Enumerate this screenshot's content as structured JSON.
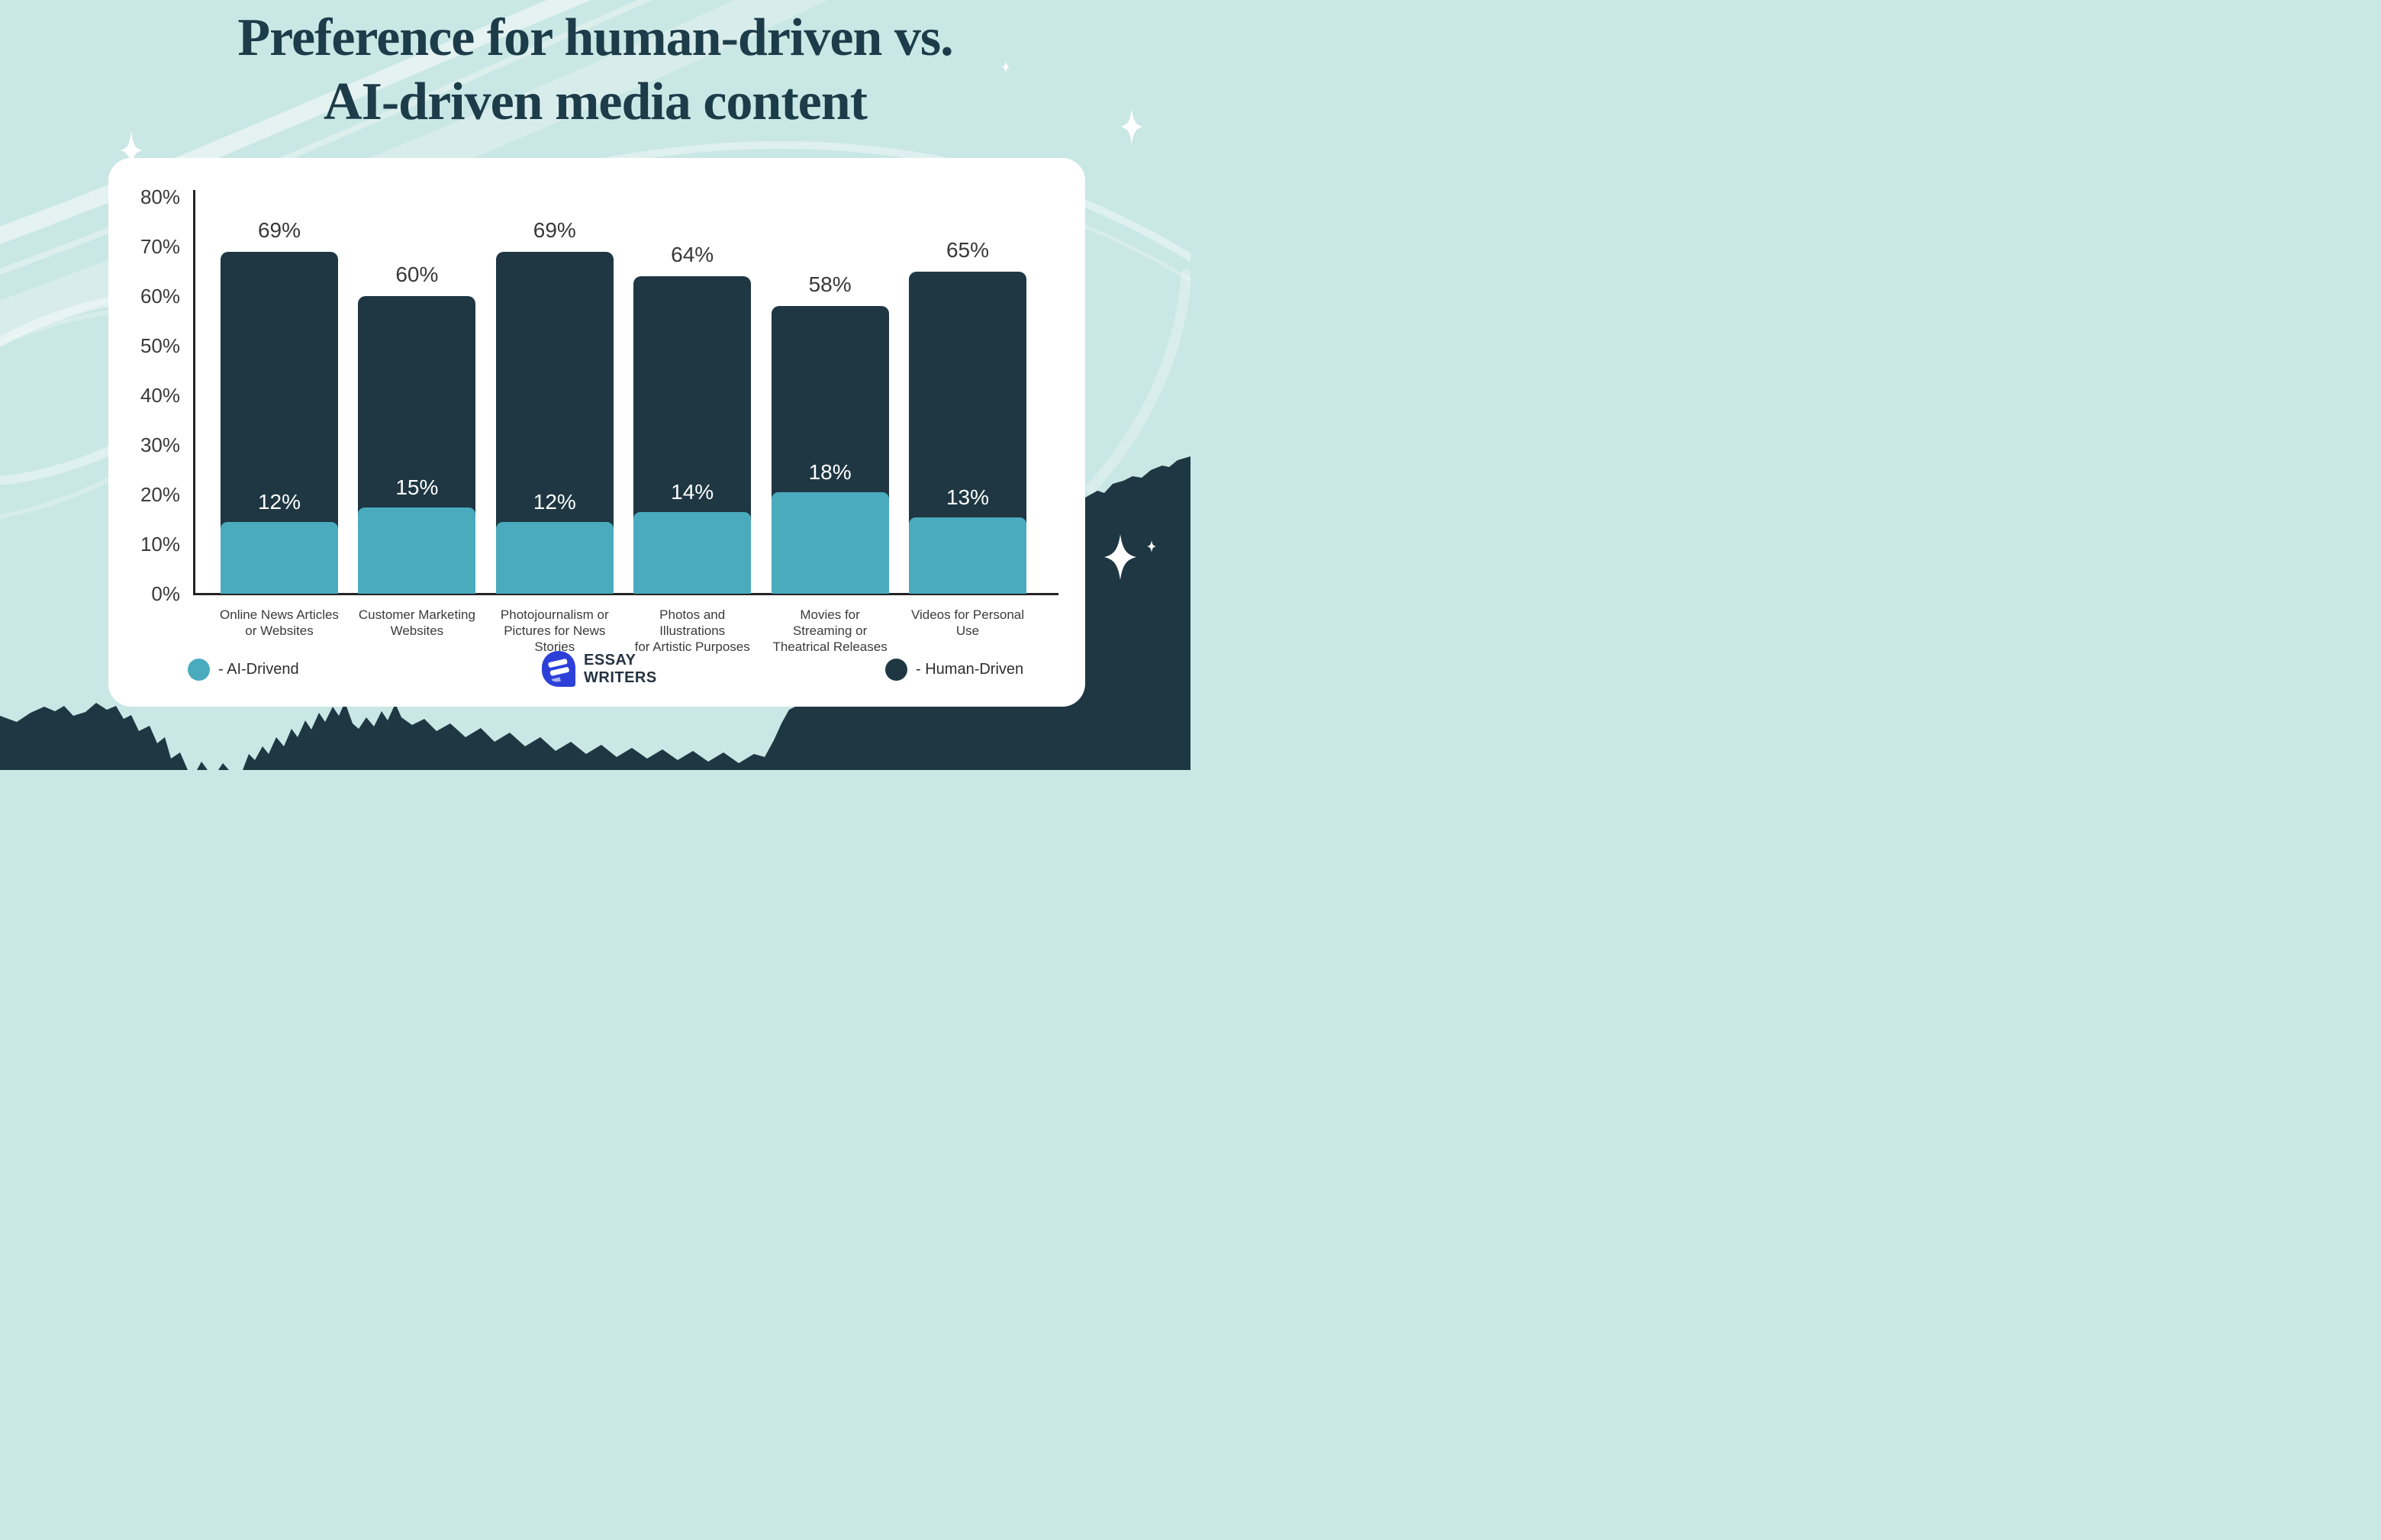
{
  "title": {
    "line1": "Preference for human-driven vs.",
    "line2": "AI-driven media content"
  },
  "chart_data": {
    "type": "bar",
    "subtype": "overlay-stacked-columns",
    "title": "Preference for human-driven vs. AI-driven media content",
    "categories": [
      "Online News Articles\nor Websites",
      "Customer Marketing\nWebsites",
      "Photojournalism or\nPictures for News\nStories",
      "Photos and\nIllustrations\nfor Artistic Purposes",
      "Movies for\nStreaming or\nTheatrical Releases",
      "Videos for Personal\nUse"
    ],
    "series": [
      {
        "name": "Human-Driven",
        "color": "#1e3743",
        "values": [
          69,
          60,
          69,
          64,
          58,
          65
        ]
      },
      {
        "name": "AI-Drivend",
        "color": "#4aabbe",
        "values": [
          12,
          15,
          12,
          14,
          18,
          13
        ]
      }
    ],
    "value_suffix": "%",
    "y_ticks": [
      "0%",
      "10%",
      "20%",
      "30%",
      "40%",
      "50%",
      "60%",
      "70%",
      "80%"
    ],
    "ylim": [
      0,
      80
    ],
    "grid": false,
    "legend_position": "bottom"
  },
  "legend": {
    "ai_label": "- AI-Drivend",
    "human_label": "- Human-Driven",
    "ai_color": "#4aabbe",
    "human_color": "#1e3743"
  },
  "logo": {
    "line1": "ESSAY",
    "line2": "WRITERS",
    "mark_color": "#2c40d9",
    "mark_stripe_light": "#a9b4ea"
  },
  "colors": {
    "background": "#c9e7e4",
    "card": "#ffffff",
    "title_text": "#1d3c4a",
    "axis_text": "#3a3a3a",
    "terrain": "#1e3743"
  }
}
